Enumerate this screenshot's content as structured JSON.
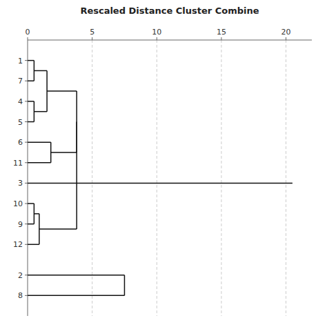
{
  "chart_data": {
    "type": "dendrogram",
    "title": "Rescaled Distance Cluster Combine",
    "categories": [
      "1",
      "7",
      "4",
      "5",
      "6",
      "11",
      "3",
      "10",
      "9",
      "12",
      "2",
      "8"
    ],
    "tree": [
      {
        "distance": 3.8,
        "children": [
          {
            "distance": 3.8,
            "children": [
              {
                "distance": 1.5,
                "children": [
                  {
                    "distance": 0.5,
                    "children": [
                      "1",
                      "7"
                    ]
                  },
                  {
                    "distance": 0.5,
                    "children": [
                      "4",
                      "5"
                    ]
                  }
                ]
              },
              {
                "distance": 1.8,
                "children": [
                  "6",
                  "11"
                ]
              }
            ]
          },
          {
            "distance": 0.9,
            "children": [
              {
                "distance": 0.5,
                "children": [
                  "10",
                  "9"
                ]
              },
              "12"
            ]
          }
        ]
      },
      {
        "distance": 7.5,
        "children": [
          "2",
          "8"
        ]
      }
    ],
    "leaf_lines": [
      {
        "label": "3",
        "extends_to": 20.5
      }
    ],
    "color": "#111111",
    "xlim": [
      0,
      22
    ],
    "xticks": [
      0,
      5,
      10,
      15,
      20
    ],
    "grid": true
  }
}
